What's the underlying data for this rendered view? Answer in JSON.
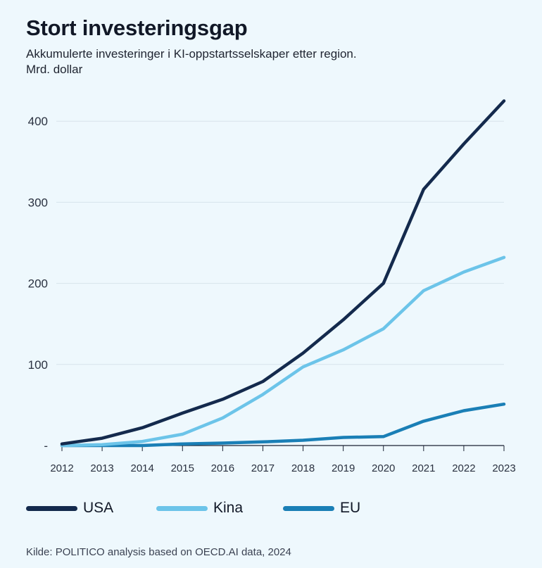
{
  "header": {
    "title": "Stort investeringsgap",
    "subtitle": "Akkumulerte investeringer i KI-oppstartsselskaper etter region.",
    "unit": "Mrd. dollar"
  },
  "source": "Kilde: POLITICO analysis based on OECD.AI data, 2024",
  "chart_data": {
    "type": "line",
    "title": "Stort investeringsgap",
    "subtitle": "Akkumulerte investeringer i KI-oppstartsselskaper etter region.",
    "ylabel": "Mrd. dollar",
    "xlabel": "",
    "x": [
      "2012",
      "2013",
      "2014",
      "2015",
      "2016",
      "2017",
      "2018",
      "2019",
      "2020",
      "2021",
      "2022",
      "2023"
    ],
    "ylim": [
      0,
      440
    ],
    "yticks": [
      400,
      300,
      200,
      100
    ],
    "zero_tick_label": "-",
    "grid": true,
    "legend_position": "bottom",
    "series": [
      {
        "name": "USA",
        "color": "#142a4d",
        "values": [
          2,
          9,
          22,
          40,
          57,
          79,
          114,
          155,
          200,
          316,
          372,
          425
        ]
      },
      {
        "name": "Kina",
        "color": "#6cc4e9",
        "values": [
          0,
          1,
          5,
          14,
          34,
          63,
          97,
          118,
          144,
          191,
          214,
          232
        ]
      },
      {
        "name": "EU",
        "color": "#1a7fb6",
        "values": [
          0,
          0,
          0,
          2,
          3,
          4.5,
          6.5,
          10,
          11,
          30,
          43,
          51
        ]
      }
    ]
  }
}
